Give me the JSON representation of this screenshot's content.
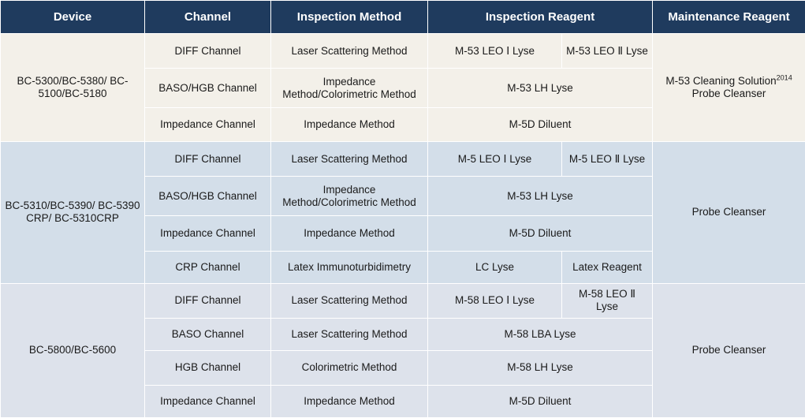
{
  "headers": {
    "device": "Device",
    "channel": "Channel",
    "method": "Inspection Method",
    "reagent": "Inspection Reagent",
    "maintenance": "Maintenance Reagent"
  },
  "group1": {
    "device": "BC-5300/BC-5380/  BC-5100/BC-5180",
    "maintenance": "M-53 Cleaning Solution",
    "maintenance_sup": "2014",
    "maintenance2": "Probe Cleanser",
    "rows": [
      {
        "channel": "DIFF Channel",
        "method": "Laser Scattering Method",
        "reagent_a": "M-53 LEO Ⅰ  Lyse",
        "reagent_b": "M-53 LEO Ⅱ  Lyse"
      },
      {
        "channel": "BASO/HGB Channel",
        "method": "Impedance Method/Colorimetric Method",
        "reagent": "M-53 LH Lyse"
      },
      {
        "channel": "Impedance Channel",
        "method": "Impedance Method",
        "reagent": "M-5D  Diluent"
      }
    ]
  },
  "group2": {
    "device": "BC-5310/BC-5390/  BC-5390 CRP/ BC-5310CRP",
    "maintenance": "Probe Cleanser",
    "rows": [
      {
        "channel": "DIFF Channel",
        "method": "Laser Scattering Method",
        "reagent_a": "M-5 LEO Ⅰ  Lyse",
        "reagent_b": "M-5 LEO Ⅱ  Lyse"
      },
      {
        "channel": "BASO/HGB Channel",
        "method": "Impedance Method/Colorimetric Method",
        "reagent": "M-53 LH Lyse"
      },
      {
        "channel": "Impedance Channel",
        "method": "Impedance Method",
        "reagent": "M-5D  Diluent"
      },
      {
        "channel": "CRP Channel",
        "method": "Latex Immunoturbidimetry",
        "reagent_a": "LC Lyse",
        "reagent_b": "Latex Reagent"
      }
    ]
  },
  "group3": {
    "device": "BC-5800/BC-5600",
    "maintenance": "Probe Cleanser",
    "rows": [
      {
        "channel": "DIFF Channel",
        "method": "Laser Scattering Method",
        "reagent_a": "M-58 LEO Ⅰ  Lyse",
        "reagent_b": "M-58 LEO Ⅱ  Lyse"
      },
      {
        "channel": "BASO Channel",
        "method": "Laser Scattering Method",
        "reagent": "M-58 LBA Lyse"
      },
      {
        "channel": "HGB Channel",
        "method": "Colorimetric Method",
        "reagent": "M-58 LH Lyse"
      },
      {
        "channel": "Impedance Channel",
        "method": "Impedance Method",
        "reagent": "M-5D  Diluent"
      }
    ]
  }
}
